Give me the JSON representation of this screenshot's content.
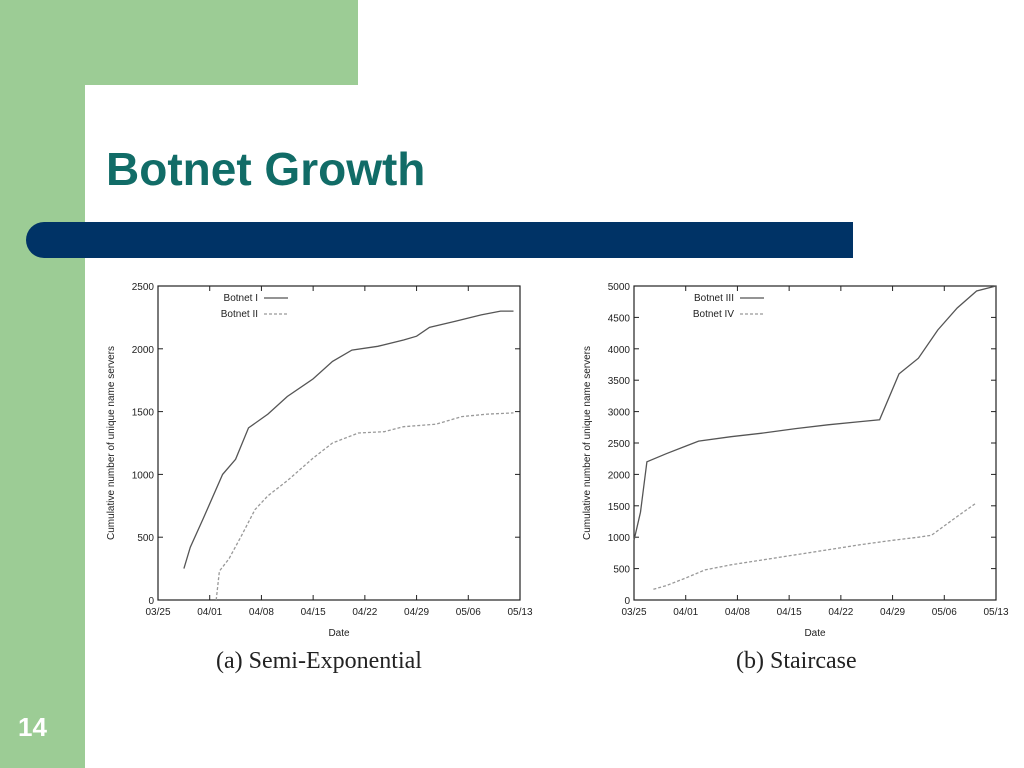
{
  "slide": {
    "title": "Botnet Growth",
    "page_number": "14",
    "colors": {
      "green": "#9ccc95",
      "navy": "#003366",
      "title": "#116c67"
    }
  },
  "chart_data": [
    {
      "type": "line",
      "caption": "(a) Semi-Exponential",
      "xlabel": "Date",
      "ylabel": "Cumulative number of unique name servers",
      "x_ticks": [
        "03/25",
        "04/01",
        "04/08",
        "04/15",
        "04/22",
        "04/29",
        "05/06",
        "05/13"
      ],
      "xlim": [
        0,
        56
      ],
      "ylim": [
        0,
        2500
      ],
      "y_ticks": [
        0,
        500,
        1000,
        1500,
        2000,
        2500
      ],
      "legend_position": "top-left",
      "series": [
        {
          "name": "Botnet I",
          "style": "solid",
          "points": [
            [
              4,
              250
            ],
            [
              5,
              420
            ],
            [
              7,
              650
            ],
            [
              10,
              1000
            ],
            [
              12,
              1120
            ],
            [
              14,
              1370
            ],
            [
              17,
              1480
            ],
            [
              20,
              1620
            ],
            [
              24,
              1760
            ],
            [
              27,
              1900
            ],
            [
              30,
              1990
            ],
            [
              34,
              2020
            ],
            [
              38,
              2070
            ],
            [
              40,
              2100
            ],
            [
              42,
              2170
            ],
            [
              46,
              2220
            ],
            [
              50,
              2270
            ],
            [
              53,
              2300
            ],
            [
              55,
              2300
            ]
          ]
        },
        {
          "name": "Botnet II",
          "style": "dashed",
          "points": [
            [
              9,
              0
            ],
            [
              9.5,
              230
            ],
            [
              11,
              330
            ],
            [
              13,
              520
            ],
            [
              15,
              720
            ],
            [
              17,
              830
            ],
            [
              20,
              950
            ],
            [
              24,
              1130
            ],
            [
              27,
              1250
            ],
            [
              31,
              1330
            ],
            [
              35,
              1340
            ],
            [
              38,
              1380
            ],
            [
              43,
              1400
            ],
            [
              47,
              1460
            ],
            [
              51,
              1480
            ],
            [
              55,
              1490
            ]
          ]
        }
      ]
    },
    {
      "type": "line",
      "caption": "(b) Staircase",
      "xlabel": "Date",
      "ylabel": "Cumulative number of unique name servers",
      "x_ticks": [
        "03/25",
        "04/01",
        "04/08",
        "04/15",
        "04/22",
        "04/29",
        "05/06",
        "05/13"
      ],
      "xlim": [
        0,
        56
      ],
      "ylim": [
        0,
        5000
      ],
      "y_ticks": [
        0,
        500,
        1000,
        1500,
        2000,
        2500,
        3000,
        3500,
        4000,
        4500,
        5000
      ],
      "legend_position": "top-left",
      "series": [
        {
          "name": "Botnet III",
          "style": "solid",
          "points": [
            [
              0,
              950
            ],
            [
              1,
              1400
            ],
            [
              2,
              2200
            ],
            [
              5,
              2330
            ],
            [
              8,
              2450
            ],
            [
              10,
              2530
            ],
            [
              15,
              2600
            ],
            [
              20,
              2660
            ],
            [
              25,
              2730
            ],
            [
              30,
              2790
            ],
            [
              35,
              2840
            ],
            [
              38,
              2870
            ],
            [
              41,
              3600
            ],
            [
              44,
              3850
            ],
            [
              47,
              4300
            ],
            [
              50,
              4650
            ],
            [
              53,
              4920
            ],
            [
              56,
              5000
            ]
          ]
        },
        {
          "name": "Botnet IV",
          "style": "dashed",
          "points": [
            [
              3,
              170
            ],
            [
              5,
              230
            ],
            [
              8,
              350
            ],
            [
              11,
              480
            ],
            [
              15,
              560
            ],
            [
              20,
              640
            ],
            [
              25,
              720
            ],
            [
              30,
              800
            ],
            [
              35,
              880
            ],
            [
              40,
              950
            ],
            [
              44,
              1000
            ],
            [
              46,
              1030
            ],
            [
              50,
              1330
            ],
            [
              53,
              1550
            ]
          ]
        }
      ]
    }
  ]
}
